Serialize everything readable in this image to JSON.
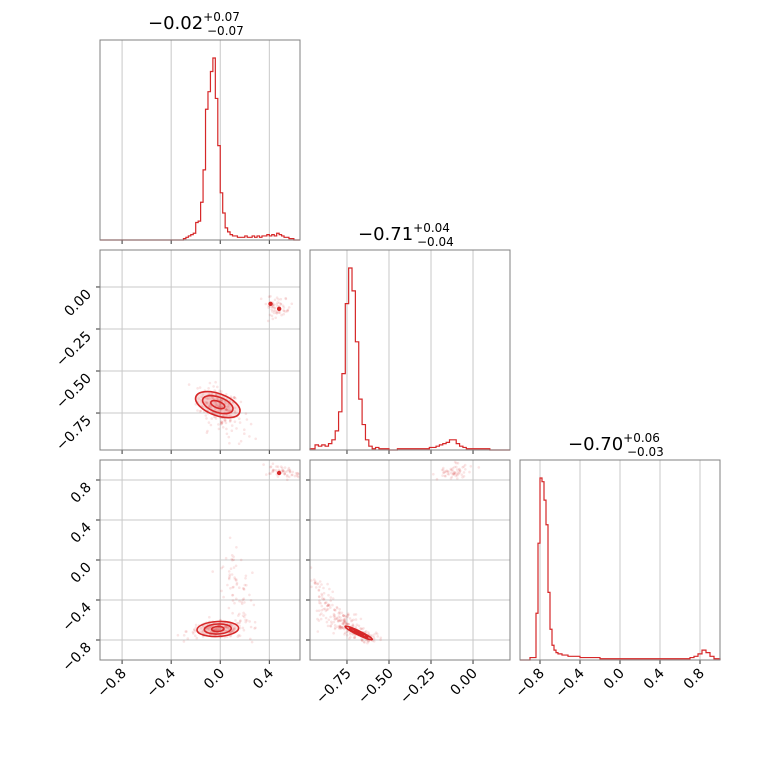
{
  "chart_data": {
    "type": "corner",
    "color": "#d62728",
    "grid": true,
    "parameters": [
      {
        "median": "−0.02",
        "upper_error": "+0.07",
        "lower_error": "−0.07",
        "range": [
          -0.98,
          0.65
        ],
        "ticks": [
          -0.8,
          -0.4,
          0.0,
          0.4
        ],
        "tick_labels": [
          "−0.8",
          "−0.4",
          "0.0",
          "0.4"
        ]
      },
      {
        "median": "−0.71",
        "upper_error": "+0.04",
        "lower_error": "−0.04",
        "range": [
          -0.97,
          0.22
        ],
        "ticks": [
          -0.75,
          -0.5,
          -0.25,
          0.0
        ],
        "tick_labels": [
          "−0.75",
          "−0.50",
          "−0.25",
          "0.00"
        ]
      },
      {
        "median": "−0.70",
        "upper_error": "+0.06",
        "lower_error": "−0.03",
        "range": [
          -1.0,
          1.0
        ],
        "ticks": [
          -0.8,
          -0.4,
          0.0,
          0.4,
          0.8
        ],
        "tick_labels": [
          "−0.8",
          "−0.4",
          "0.0",
          "0.4",
          "0.8"
        ]
      }
    ],
    "histograms": [
      {
        "parameter": 0,
        "bins": [
          -0.98,
          -0.78,
          -0.3,
          -0.28,
          -0.26,
          -0.24,
          -0.22,
          -0.2,
          -0.18,
          -0.16,
          -0.14,
          -0.12,
          -0.1,
          -0.08,
          -0.06,
          -0.04,
          -0.02,
          0.0,
          0.02,
          0.04,
          0.06,
          0.08,
          0.1,
          0.12,
          0.14,
          0.16,
          0.18,
          0.2,
          0.22,
          0.24,
          0.26,
          0.28,
          0.3,
          0.32,
          0.34,
          0.36,
          0.38,
          0.4,
          0.42,
          0.44,
          0.46,
          0.48,
          0.5,
          0.52,
          0.54,
          0.56,
          0.58,
          0.6,
          0.62,
          0.65
        ],
        "counts": [
          0,
          0,
          1,
          2,
          3,
          4,
          5,
          13,
          14,
          28,
          52,
          97,
          110,
          125,
          135,
          105,
          70,
          35,
          20,
          9,
          6,
          4,
          3,
          3,
          2,
          2,
          2,
          3,
          2,
          2,
          3,
          2,
          3,
          2,
          3,
          3,
          4,
          3,
          4,
          3,
          5,
          4,
          3,
          2,
          2,
          1,
          1,
          0,
          0
        ]
      },
      {
        "parameter": 1,
        "bins": [
          -0.97,
          -0.94,
          -0.92,
          -0.9,
          -0.88,
          -0.86,
          -0.84,
          -0.82,
          -0.8,
          -0.78,
          -0.76,
          -0.74,
          -0.72,
          -0.7,
          -0.68,
          -0.66,
          -0.64,
          -0.62,
          -0.6,
          -0.58,
          -0.56,
          -0.54,
          -0.5,
          -0.45,
          -0.4,
          -0.35,
          -0.3,
          -0.26,
          -0.24,
          -0.22,
          -0.2,
          -0.18,
          -0.16,
          -0.14,
          -0.12,
          -0.1,
          -0.08,
          -0.06,
          -0.04,
          -0.02,
          0.0,
          0.05,
          0.1,
          0.15,
          0.22
        ],
        "counts": [
          1,
          4,
          3,
          4,
          3,
          5,
          8,
          15,
          30,
          60,
          115,
          143,
          125,
          85,
          40,
          20,
          8,
          3,
          1,
          2,
          1,
          1,
          0,
          1,
          1,
          1,
          1,
          2,
          2,
          3,
          4,
          5,
          6,
          8,
          8,
          5,
          3,
          2,
          1,
          1,
          1,
          1,
          0,
          0
        ]
      },
      {
        "parameter": 2,
        "bins": [
          -1.0,
          -0.9,
          -0.86,
          -0.84,
          -0.82,
          -0.8,
          -0.78,
          -0.76,
          -0.74,
          -0.72,
          -0.7,
          -0.68,
          -0.66,
          -0.64,
          -0.62,
          -0.58,
          -0.52,
          -0.46,
          -0.4,
          -0.3,
          -0.2,
          -0.1,
          0.0,
          0.2,
          0.4,
          0.6,
          0.7,
          0.74,
          0.78,
          0.82,
          0.86,
          0.9,
          0.94,
          1.0
        ],
        "counts": [
          0,
          2,
          2,
          38,
          95,
          148,
          145,
          130,
          110,
          55,
          25,
          12,
          8,
          6,
          5,
          4,
          3,
          3,
          2,
          2,
          1,
          1,
          1,
          1,
          1,
          1,
          2,
          3,
          5,
          8,
          6,
          3,
          1
        ]
      }
    ],
    "scatter_2d": [
      {
        "x_parameter": 0,
        "y_parameter": 1,
        "clusters": [
          {
            "center": [
              -0.02,
              -0.7
            ],
            "spread": [
              0.08,
              0.05
            ],
            "rotation": -0.25,
            "n": 160
          },
          {
            "center": [
              0.04,
              -0.78
            ],
            "spread": [
              0.1,
              0.06
            ],
            "rotation": -0.4,
            "n": 70
          },
          {
            "center": [
              0.47,
              -0.12
            ],
            "spread": [
              0.05,
              0.03
            ],
            "rotation": -0.3,
            "n": 60
          }
        ],
        "contours": [
          {
            "center": [
              -0.02,
              -0.7
            ],
            "radii": [
              0.19,
              0.065
            ],
            "rotation": -0.35
          },
          {
            "center": [
              -0.02,
              -0.7
            ],
            "radii": [
              0.13,
              0.045
            ],
            "rotation": -0.35
          },
          {
            "center": [
              -0.02,
              -0.7
            ],
            "radii": [
              0.06,
              0.02
            ],
            "rotation": -0.35
          }
        ],
        "peaks": [
          [
            0.41,
            -0.1
          ],
          [
            0.48,
            -0.13
          ]
        ]
      },
      {
        "x_parameter": 0,
        "y_parameter": 2,
        "clusters": [
          {
            "center": [
              -0.03,
              -0.7
            ],
            "spread": [
              0.12,
              0.04
            ],
            "rotation": 0.05,
            "n": 160
          },
          {
            "center": [
              0.15,
              -0.3
            ],
            "spread": [
              0.06,
              0.22
            ],
            "rotation": 0.2,
            "n": 80
          },
          {
            "center": [
              0.5,
              0.88
            ],
            "spread": [
              0.1,
              0.03
            ],
            "rotation": -0.2,
            "n": 60
          }
        ],
        "contours": [
          {
            "center": [
              -0.02,
              -0.69
            ],
            "radii": [
              0.17,
              0.075
            ],
            "rotation": 0.05
          },
          {
            "center": [
              -0.02,
              -0.69
            ],
            "radii": [
              0.11,
              0.05
            ],
            "rotation": 0.05
          },
          {
            "center": [
              -0.02,
              -0.69
            ],
            "radii": [
              0.05,
              0.025
            ],
            "rotation": 0.05
          }
        ],
        "peaks": [
          [
            0.48,
            0.87
          ]
        ]
      },
      {
        "x_parameter": 1,
        "y_parameter": 2,
        "clusters": [
          {
            "center": [
              -0.78,
              -0.62
            ],
            "spread": [
              0.08,
              0.06
            ],
            "rotation": -0.9,
            "n": 110
          },
          {
            "center": [
              -0.9,
              -0.35
            ],
            "spread": [
              0.03,
              0.12
            ],
            "rotation": 0.3,
            "n": 60
          },
          {
            "center": [
              -0.68,
              -0.74
            ],
            "spread": [
              0.06,
              0.03
            ],
            "rotation": -0.5,
            "n": 90
          },
          {
            "center": [
              -0.1,
              0.88
            ],
            "spread": [
              0.06,
              0.04
            ],
            "rotation": 0.6,
            "n": 60
          }
        ],
        "contours": [
          {
            "center": [
              -0.68,
              -0.73
            ],
            "radii": [
              0.09,
              0.02
            ],
            "rotation": -0.45
          },
          {
            "center": [
              -0.68,
              -0.73
            ],
            "radii": [
              0.06,
              0.013
            ],
            "rotation": -0.45
          },
          {
            "center": [
              -0.68,
              -0.73
            ],
            "radii": [
              0.03,
              0.007
            ],
            "rotation": -0.45
          }
        ],
        "peaks": []
      }
    ]
  }
}
